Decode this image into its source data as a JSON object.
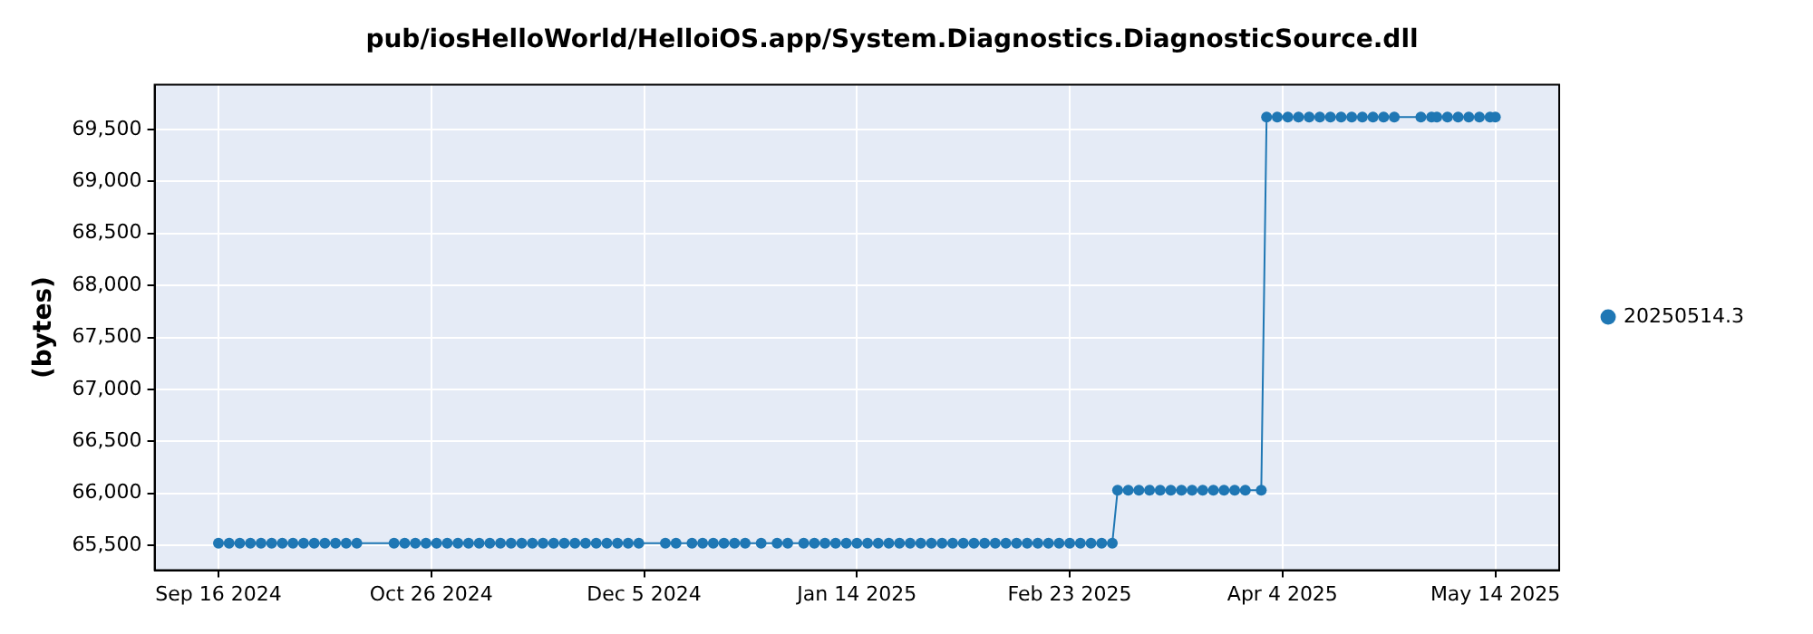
{
  "chart_data": {
    "type": "line",
    "title": "pub/iosHelloWorld/HelloiOS.app/System.Diagnostics.DiagnosticSource.dll",
    "ylabel": "(bytes)",
    "x": [
      "2024-09-16",
      "2024-09-18",
      "2024-09-20",
      "2024-09-22",
      "2024-09-24",
      "2024-09-26",
      "2024-09-28",
      "2024-09-30",
      "2024-10-02",
      "2024-10-04",
      "2024-10-06",
      "2024-10-08",
      "2024-10-10",
      "2024-10-12",
      "2024-10-19",
      "2024-10-21",
      "2024-10-23",
      "2024-10-25",
      "2024-10-27",
      "2024-10-29",
      "2024-10-31",
      "2024-11-02",
      "2024-11-04",
      "2024-11-06",
      "2024-11-08",
      "2024-11-10",
      "2024-11-12",
      "2024-11-14",
      "2024-11-16",
      "2024-11-18",
      "2024-11-20",
      "2024-11-22",
      "2024-11-24",
      "2024-11-26",
      "2024-11-28",
      "2024-11-30",
      "2024-12-02",
      "2024-12-04",
      "2024-12-09",
      "2024-12-11",
      "2024-12-14",
      "2024-12-16",
      "2024-12-18",
      "2024-12-20",
      "2024-12-22",
      "2024-12-24",
      "2024-12-27",
      "2024-12-30",
      "2025-01-01",
      "2025-01-04",
      "2025-01-06",
      "2025-01-08",
      "2025-01-10",
      "2025-01-12",
      "2025-01-14",
      "2025-01-16",
      "2025-01-18",
      "2025-01-20",
      "2025-01-22",
      "2025-01-24",
      "2025-01-26",
      "2025-01-28",
      "2025-01-30",
      "2025-02-01",
      "2025-02-03",
      "2025-02-05",
      "2025-02-07",
      "2025-02-09",
      "2025-02-11",
      "2025-02-13",
      "2025-02-15",
      "2025-02-17",
      "2025-02-19",
      "2025-02-21",
      "2025-02-23",
      "2025-02-25",
      "2025-02-27",
      "2025-03-01",
      "2025-03-03",
      "2025-03-04",
      "2025-03-06",
      "2025-03-08",
      "2025-03-10",
      "2025-03-12",
      "2025-03-14",
      "2025-03-16",
      "2025-03-18",
      "2025-03-20",
      "2025-03-22",
      "2025-03-24",
      "2025-03-26",
      "2025-03-28",
      "2025-03-31",
      "2025-04-01",
      "2025-04-03",
      "2025-04-05",
      "2025-04-07",
      "2025-04-09",
      "2025-04-11",
      "2025-04-13",
      "2025-04-15",
      "2025-04-17",
      "2025-04-19",
      "2025-04-21",
      "2025-04-23",
      "2025-04-25",
      "2025-04-30",
      "2025-05-02",
      "2025-05-03",
      "2025-05-05",
      "2025-05-07",
      "2025-05-09",
      "2025-05-11",
      "2025-05-13",
      "2025-05-14"
    ],
    "series": [
      {
        "name": "20250514.3",
        "color": "#1f77b4",
        "values": [
          65520,
          65520,
          65520,
          65520,
          65520,
          65520,
          65520,
          65520,
          65520,
          65520,
          65520,
          65520,
          65520,
          65520,
          65520,
          65520,
          65520,
          65520,
          65520,
          65520,
          65520,
          65520,
          65520,
          65520,
          65520,
          65520,
          65520,
          65520,
          65520,
          65520,
          65520,
          65520,
          65520,
          65520,
          65520,
          65520,
          65520,
          65520,
          65520,
          65520,
          65520,
          65520,
          65520,
          65520,
          65520,
          65520,
          65520,
          65520,
          65520,
          65520,
          65520,
          65520,
          65520,
          65520,
          65520,
          65520,
          65520,
          65520,
          65520,
          65520,
          65520,
          65520,
          65520,
          65520,
          65520,
          65520,
          65520,
          65520,
          65520,
          65520,
          65520,
          65520,
          65520,
          65520,
          65520,
          65520,
          65520,
          65520,
          65520,
          66030,
          66030,
          66030,
          66030,
          66030,
          66030,
          66030,
          66030,
          66030,
          66030,
          66030,
          66030,
          66030,
          66030,
          69620,
          69620,
          69620,
          69620,
          69620,
          69620,
          69620,
          69620,
          69620,
          69620,
          69620,
          69620,
          69620,
          69620,
          69620,
          69620,
          69620,
          69620,
          69620,
          69620,
          69620,
          69620
        ]
      }
    ],
    "xlim": [
      "2024-09-04",
      "2025-05-26"
    ],
    "xticks": [
      {
        "value": "2024-09-16",
        "label": "Sep 16 2024"
      },
      {
        "value": "2024-10-26",
        "label": "Oct 26 2024"
      },
      {
        "value": "2024-12-05",
        "label": "Dec 5 2024"
      },
      {
        "value": "2025-01-14",
        "label": "Jan 14 2025"
      },
      {
        "value": "2025-02-23",
        "label": "Feb 23 2025"
      },
      {
        "value": "2025-04-04",
        "label": "Apr 4 2025"
      },
      {
        "value": "2025-05-14",
        "label": "May 14 2025"
      }
    ],
    "ylim": [
      65260,
      69930
    ],
    "yticks": [
      {
        "value": 65500,
        "label": "65,500"
      },
      {
        "value": 66000,
        "label": "66,000"
      },
      {
        "value": 66500,
        "label": "66,500"
      },
      {
        "value": 67000,
        "label": "67,000"
      },
      {
        "value": 67500,
        "label": "67,500"
      },
      {
        "value": 68000,
        "label": "68,000"
      },
      {
        "value": 68500,
        "label": "68,500"
      },
      {
        "value": 69000,
        "label": "69,000"
      },
      {
        "value": 69500,
        "label": "69,500"
      }
    ],
    "grid": true,
    "legend": "right",
    "marker": "circle",
    "line_style": "solid"
  }
}
